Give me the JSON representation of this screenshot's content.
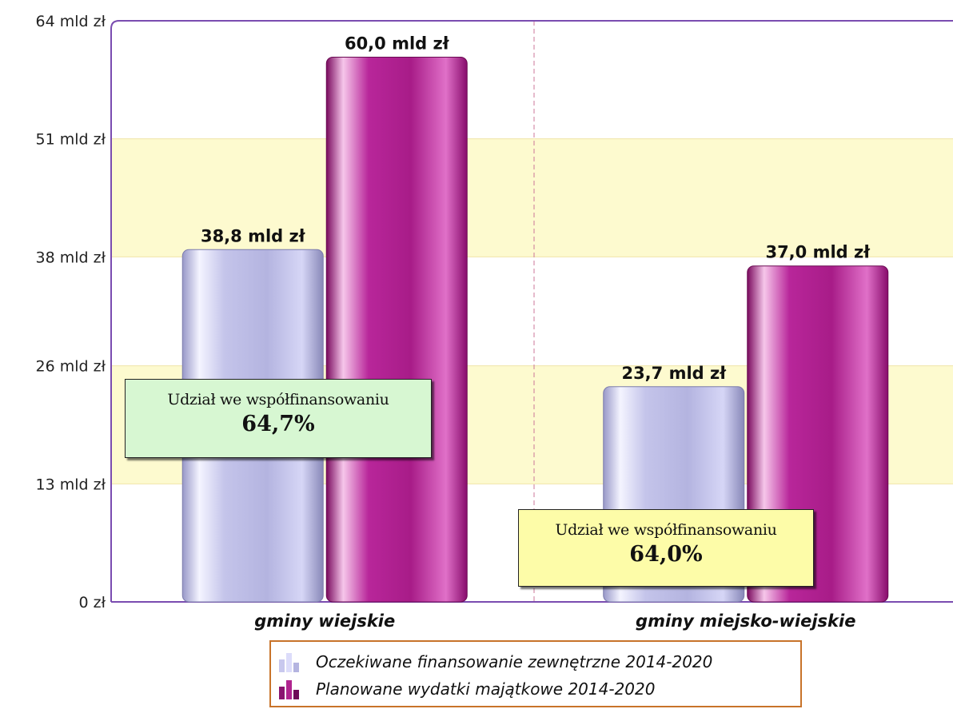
{
  "chart_data": {
    "type": "bar",
    "categories": [
      "gminy wiejskie",
      "gminy miejsko-wiejskie"
    ],
    "series": [
      {
        "name": "Oczekiwane finansowanie zewnętrzne 2014-2020",
        "values": [
          38.8,
          23.7
        ],
        "labels": [
          "38,8 mld zł",
          "23,7 mld zł"
        ],
        "color": "#b8b8e6"
      },
      {
        "name": "Planowane wydatki majątkowe 2014-2020",
        "values": [
          60.0,
          37.0
        ],
        "labels": [
          "60,0 mld zł",
          "37,0 mld zł"
        ],
        "color": "#b0248f"
      }
    ],
    "ylim": [
      0,
      64
    ],
    "yticks": [
      0,
      13,
      26,
      38,
      51,
      64
    ],
    "ytick_labels": [
      "0 zł",
      "13 mld zł",
      "26 mld zł",
      "38 mld zł",
      "51 mld zł",
      "64 mld zł"
    ],
    "banded_background": true,
    "band_color": "#fdfacf",
    "legend_position": "bottom",
    "annotations": [
      {
        "category": "gminy wiejskie",
        "text": "Udział we współfinansowaniu",
        "value": "64,7%",
        "background": "#d7f7d2"
      },
      {
        "category": "gminy miejsko-wiejskie",
        "text": "Udział we współfinansowaniu",
        "value": "64,0%",
        "background": "#fdfca8"
      }
    ]
  },
  "legend": {
    "items": [
      {
        "label": "Oczekiwane finansowanie zewnętrzne 2014-2020",
        "icon": "bar-chart-icon-light"
      },
      {
        "label": "Planowane wydatki majątkowe 2014-2020",
        "icon": "bar-chart-icon-dark"
      }
    ]
  }
}
